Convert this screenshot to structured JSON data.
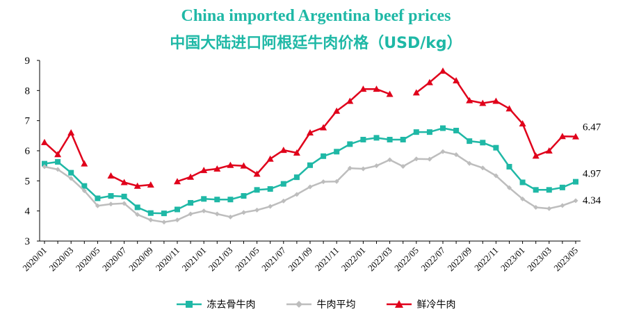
{
  "titles": {
    "en": "China imported Argentina beef prices",
    "cn": "中国大陆进口阿根廷牛肉价格（USD/kg）"
  },
  "colors": {
    "frozen": "#1fb8a6",
    "average": "#bdbdbd",
    "fresh": "#e0001b",
    "title": "#1fb8a6"
  },
  "chart_data": {
    "type": "line",
    "x_tick_labels": [
      "2020/01",
      "2020/03",
      "2020/05",
      "2020/07",
      "2020/09",
      "2020/11",
      "2021/01",
      "2021/03",
      "2021/05",
      "2021/07",
      "2021/09",
      "2021/11",
      "2022/01",
      "2022/03",
      "2022/05",
      "2022/07",
      "2022/09",
      "2022/11",
      "2023/01",
      "2023/03",
      "2023/05"
    ],
    "x": [
      "2020/01",
      "2020/02",
      "2020/03",
      "2020/04",
      "2020/05",
      "2020/06",
      "2020/07",
      "2020/08",
      "2020/09",
      "2020/10",
      "2020/11",
      "2020/12",
      "2021/01",
      "2021/02",
      "2021/03",
      "2021/04",
      "2021/05",
      "2021/06",
      "2021/07",
      "2021/08",
      "2021/09",
      "2021/10",
      "2021/11",
      "2021/12",
      "2022/01",
      "2022/02",
      "2022/03",
      "2022/04",
      "2022/05",
      "2022/06",
      "2022/07",
      "2022/08",
      "2022/09",
      "2022/10",
      "2022/11",
      "2022/12",
      "2023/01",
      "2023/02",
      "2023/03",
      "2023/04",
      "2023/05"
    ],
    "ylim": [
      3,
      9
    ],
    "yticks": [
      3,
      4,
      5,
      6,
      7,
      8,
      9
    ],
    "series": [
      {
        "name": "冻去骨牛肉",
        "key": "frozen",
        "marker": "square",
        "values": [
          5.57,
          5.63,
          5.27,
          4.83,
          4.42,
          4.5,
          4.48,
          4.12,
          3.93,
          3.92,
          4.05,
          4.27,
          4.4,
          4.38,
          4.38,
          4.5,
          4.7,
          4.73,
          4.9,
          5.12,
          5.52,
          5.82,
          5.97,
          6.22,
          6.37,
          6.43,
          6.37,
          6.37,
          6.62,
          6.62,
          6.75,
          6.67,
          6.32,
          6.27,
          6.1,
          5.47,
          4.95,
          4.7,
          4.7,
          4.78,
          4.97
        ]
      },
      {
        "name": "牛肉平均",
        "key": "average",
        "marker": "diamond",
        "values": [
          5.47,
          5.38,
          5.08,
          4.67,
          4.17,
          4.23,
          4.25,
          3.88,
          3.7,
          3.63,
          3.7,
          3.9,
          4.0,
          3.9,
          3.8,
          3.95,
          4.03,
          4.15,
          4.33,
          4.55,
          4.8,
          4.97,
          4.98,
          5.42,
          5.4,
          5.5,
          5.7,
          5.48,
          5.73,
          5.72,
          5.97,
          5.87,
          5.58,
          5.43,
          5.17,
          4.77,
          4.4,
          4.12,
          4.08,
          4.18,
          4.34
        ]
      },
      {
        "name": "鲜冷牛肉",
        "key": "fresh",
        "marker": "triangle",
        "values": [
          6.28,
          5.88,
          6.6,
          5.57,
          null,
          5.17,
          4.95,
          4.83,
          4.87,
          null,
          4.98,
          5.13,
          5.35,
          5.4,
          5.52,
          5.5,
          5.23,
          5.73,
          6.02,
          5.93,
          6.6,
          6.77,
          7.32,
          7.65,
          8.05,
          8.05,
          7.88,
          null,
          7.93,
          8.27,
          8.65,
          8.33,
          7.67,
          7.58,
          7.65,
          7.4,
          6.9,
          5.83,
          6.0,
          6.48,
          6.47
        ]
      }
    ],
    "end_labels": {
      "fresh": "6.47",
      "frozen": "4.97",
      "average": "4.34"
    }
  }
}
